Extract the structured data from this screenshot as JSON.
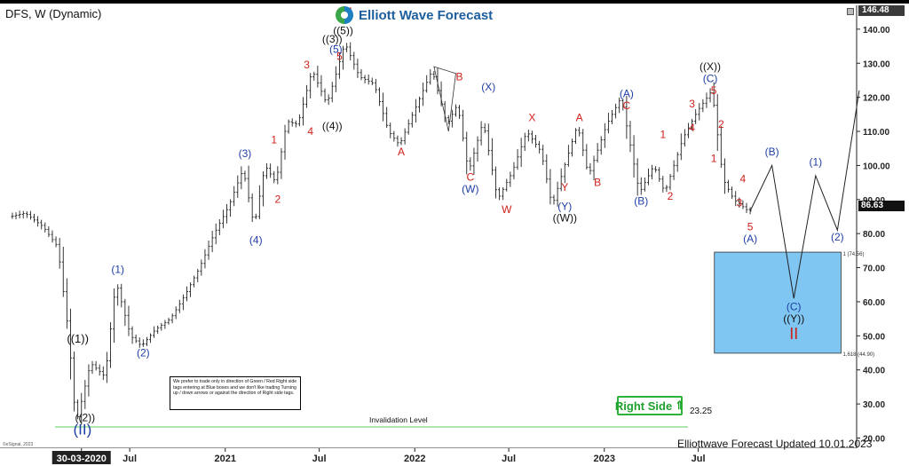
{
  "header": {
    "symbol": "DFS, W (Dynamic)",
    "brand_name": "Elliott Wave Forecast",
    "top_price": "146.48",
    "last_price": "86.63"
  },
  "colors": {
    "wave_blue": "#1f3fa6",
    "wave_red": "#d0201a",
    "wave_black": "#111111",
    "target_box": "#7fc6f2",
    "invalidation_line": "#5bcf5b",
    "right_side_green": "#1fa12d"
  },
  "notes": {
    "box_text": "We prefer to trade only in direction of Green / Red Right side tags entering at Blue boxes and we don't like trading Turning up / down arrows or against the direction of Right side tags.",
    "right_side_label": "Right Side",
    "right_side_arrow": "⇑",
    "updated": "Elliottwave Forecast Updated 10.01.2023",
    "invalidation_label": "Invalidation Level",
    "invalidation_price": "23.25",
    "watermark": "©eSignal, 2023"
  },
  "chart_data": {
    "type": "ohlc",
    "ylim": [
      17,
      147
    ],
    "yticks": [
      140,
      130,
      120,
      110,
      100,
      90,
      80,
      70,
      60,
      50,
      40,
      30,
      20
    ],
    "ytick_labels": [
      "140.00",
      "130.00",
      "120.00",
      "110.00",
      "100.00",
      "90.00",
      "80.00",
      "70.00",
      "60.00",
      "50.00",
      "40.00",
      "30.00",
      "20.00"
    ],
    "x_start": "2019-11",
    "x_end": "2024-05",
    "xticks": [
      {
        "label": "30-03-2020",
        "date": "2020-03-30"
      },
      {
        "label": "Jul",
        "date": "2020-07-01"
      },
      {
        "label": "2021",
        "date": "2021-01-01"
      },
      {
        "label": "Jul",
        "date": "2021-07-01"
      },
      {
        "label": "2022",
        "date": "2022-01-01"
      },
      {
        "label": "Jul",
        "date": "2022-07-01"
      },
      {
        "label": "2023",
        "date": "2023-01-01"
      },
      {
        "label": "Jul",
        "date": "2023-07-01"
      }
    ],
    "price_path": [
      [
        "2019-11-18",
        85
      ],
      [
        "2019-12-16",
        86
      ],
      [
        "2020-01-20",
        82
      ],
      [
        "2020-02-17",
        76
      ],
      [
        "2020-03-09",
        50
      ],
      [
        "2020-03-23",
        24
      ],
      [
        "2020-04-20",
        42
      ],
      [
        "2020-05-18",
        38
      ],
      [
        "2020-06-08",
        66
      ],
      [
        "2020-07-06",
        50
      ],
      [
        "2020-07-27",
        47
      ],
      [
        "2020-08-24",
        52
      ],
      [
        "2020-09-21",
        55
      ],
      [
        "2020-10-19",
        62
      ],
      [
        "2020-11-16",
        70
      ],
      [
        "2020-12-14",
        80
      ],
      [
        "2021-01-11",
        88
      ],
      [
        "2021-02-08",
        99
      ],
      [
        "2021-03-01",
        82
      ],
      [
        "2021-03-22",
        100
      ],
      [
        "2021-04-12",
        95
      ],
      [
        "2021-05-03",
        113
      ],
      [
        "2021-05-24",
        112
      ],
      [
        "2021-06-07",
        120
      ],
      [
        "2021-06-21",
        128
      ],
      [
        "2021-07-19",
        118
      ],
      [
        "2021-08-02",
        125
      ],
      [
        "2021-08-23",
        136
      ],
      [
        "2021-09-20",
        126
      ],
      [
        "2021-10-18",
        124
      ],
      [
        "2021-11-15",
        110
      ],
      [
        "2021-12-06",
        106
      ],
      [
        "2022-01-03",
        116
      ],
      [
        "2022-02-07",
        128
      ],
      [
        "2022-03-07",
        112
      ],
      [
        "2022-03-28",
        118
      ],
      [
        "2022-04-18",
        98
      ],
      [
        "2022-05-16",
        113
      ],
      [
        "2022-06-13",
        90
      ],
      [
        "2022-07-11",
        98
      ],
      [
        "2022-08-08",
        110
      ],
      [
        "2022-09-05",
        104
      ],
      [
        "2022-09-26",
        88
      ],
      [
        "2022-10-24",
        102
      ],
      [
        "2022-11-14",
        112
      ],
      [
        "2022-12-05",
        97
      ],
      [
        "2023-01-09",
        112
      ],
      [
        "2023-02-06",
        120
      ],
      [
        "2023-03-13",
        92
      ],
      [
        "2023-04-10",
        100
      ],
      [
        "2023-05-01",
        92
      ],
      [
        "2023-06-05",
        108
      ],
      [
        "2023-07-03",
        116
      ],
      [
        "2023-07-31",
        122
      ],
      [
        "2023-08-21",
        96
      ],
      [
        "2023-09-11",
        90
      ],
      [
        "2023-10-09",
        86.63
      ]
    ],
    "projection_path": [
      [
        "2023-10-09",
        86.63
      ],
      [
        "2023-11-20",
        100
      ],
      [
        "2024-01-01",
        61
      ],
      [
        "2024-02-12",
        97
      ],
      [
        "2024-03-25",
        81
      ],
      [
        "2024-05-06",
        122
      ]
    ],
    "triangle": [
      [
        "2022-02-07",
        129
      ],
      [
        "2022-03-21",
        127
      ],
      [
        "2022-03-07",
        110
      ]
    ],
    "target_box": {
      "x0": "2023-08-01",
      "x1": "2024-04-01",
      "y_top": 74.56,
      "y_bottom": 44.9,
      "top_label": "1 (74.56)",
      "bottom_label": "1.618 (44.90)"
    },
    "invalidation_level": 23.25,
    "wave_labels": [
      {
        "text": "((1))",
        "x": "2020-03-23",
        "y": 48,
        "color": "black",
        "size": 13
      },
      {
        "text": "((2))",
        "x": "2020-04-06",
        "y": 25,
        "color": "black",
        "size": 12
      },
      {
        "text": "(II)",
        "x": "2020-04-01",
        "y": 21,
        "color": "blue",
        "size": 17
      },
      {
        "text": "(1)",
        "x": "2020-06-08",
        "y": 68.5,
        "color": "blue",
        "size": 12
      },
      {
        "text": "(2)",
        "x": "2020-07-27",
        "y": 44,
        "color": "blue",
        "size": 12
      },
      {
        "text": "(3)",
        "x": "2021-02-08",
        "y": 102.5,
        "color": "blue",
        "size": 12
      },
      {
        "text": "(4)",
        "x": "2021-03-01",
        "y": 77,
        "color": "blue",
        "size": 12
      },
      {
        "text": "1",
        "x": "2021-04-05",
        "y": 106.5,
        "color": "red",
        "size": 12
      },
      {
        "text": "2",
        "x": "2021-04-12",
        "y": 89,
        "color": "red",
        "size": 12
      },
      {
        "text": "3",
        "x": "2021-06-07",
        "y": 128.5,
        "color": "red",
        "size": 12
      },
      {
        "text": "4",
        "x": "2021-06-14",
        "y": 109,
        "color": "red",
        "size": 12
      },
      {
        "text": "5",
        "x": "2021-08-09",
        "y": 131,
        "color": "red",
        "size": 12
      },
      {
        "text": "(5)",
        "x": "2021-08-02",
        "y": 133,
        "color": "blue",
        "size": 12
      },
      {
        "text": "((3))",
        "x": "2021-07-26",
        "y": 136,
        "color": "black",
        "size": 12
      },
      {
        "text": "((5))",
        "x": "2021-08-16",
        "y": 138.5,
        "color": "black",
        "size": 12
      },
      {
        "text": "((4))",
        "x": "2021-07-26",
        "y": 110.5,
        "color": "black",
        "size": 12
      },
      {
        "text": "I",
        "x": "2021-08-30",
        "y": 143,
        "color": "red",
        "size": 18
      },
      {
        "text": "A",
        "x": "2021-12-06",
        "y": 103,
        "color": "red",
        "size": 12
      },
      {
        "text": "B",
        "x": "2022-03-28",
        "y": 125,
        "color": "red",
        "size": 12
      },
      {
        "text": "C",
        "x": "2022-04-18",
        "y": 95.5,
        "color": "red",
        "size": 12
      },
      {
        "text": "(W)",
        "x": "2022-04-18",
        "y": 92,
        "color": "blue",
        "size": 12
      },
      {
        "text": "(X)",
        "x": "2022-05-23",
        "y": 122,
        "color": "blue",
        "size": 12
      },
      {
        "text": "W",
        "x": "2022-06-27",
        "y": 86,
        "color": "red",
        "size": 12
      },
      {
        "text": "X",
        "x": "2022-08-15",
        "y": 113,
        "color": "red",
        "size": 12
      },
      {
        "text": "A",
        "x": "2022-11-14",
        "y": 113,
        "color": "red",
        "size": 12
      },
      {
        "text": "Y",
        "x": "2022-10-17",
        "y": 92.5,
        "color": "red",
        "size": 12
      },
      {
        "text": "(Y)",
        "x": "2022-10-17",
        "y": 87,
        "color": "blue",
        "size": 12
      },
      {
        "text": "((W))",
        "x": "2022-10-17",
        "y": 83.5,
        "color": "black",
        "size": 12
      },
      {
        "text": "B",
        "x": "2022-12-19",
        "y": 94,
        "color": "red",
        "size": 12
      },
      {
        "text": "C",
        "x": "2023-02-13",
        "y": 116.5,
        "color": "red",
        "size": 12
      },
      {
        "text": "(A)",
        "x": "2023-02-13",
        "y": 120,
        "color": "blue",
        "size": 12
      },
      {
        "text": "(B)",
        "x": "2023-03-13",
        "y": 88.5,
        "color": "blue",
        "size": 12
      },
      {
        "text": "1",
        "x": "2023-04-24",
        "y": 108,
        "color": "red",
        "size": 12
      },
      {
        "text": "2",
        "x": "2023-05-08",
        "y": 90,
        "color": "red",
        "size": 12
      },
      {
        "text": "3",
        "x": "2023-06-19",
        "y": 117,
        "color": "red",
        "size": 12
      },
      {
        "text": "4",
        "x": "2023-06-19",
        "y": 110,
        "color": "red",
        "size": 12
      },
      {
        "text": "5",
        "x": "2023-07-31",
        "y": 121,
        "color": "red",
        "size": 12
      },
      {
        "text": "(C)",
        "x": "2023-07-24",
        "y": 124.5,
        "color": "blue",
        "size": 12
      },
      {
        "text": "((X))",
        "x": "2023-07-24",
        "y": 128,
        "color": "black",
        "size": 12
      },
      {
        "text": "1",
        "x": "2023-07-31",
        "y": 101,
        "color": "red",
        "size": 12
      },
      {
        "text": "2",
        "x": "2023-08-14",
        "y": 111,
        "color": "red",
        "size": 12
      },
      {
        "text": "3",
        "x": "2023-09-18",
        "y": 88,
        "color": "red",
        "size": 12
      },
      {
        "text": "4",
        "x": "2023-09-25",
        "y": 95,
        "color": "red",
        "size": 12
      },
      {
        "text": "5",
        "x": "2023-10-09",
        "y": 81,
        "color": "red",
        "size": 12
      },
      {
        "text": "(A)",
        "x": "2023-10-09",
        "y": 77.5,
        "color": "blue",
        "size": 12
      },
      {
        "text": "(B)",
        "x": "2023-11-20",
        "y": 103,
        "color": "blue",
        "size": 12
      },
      {
        "text": "(C)",
        "x": "2024-01-01",
        "y": 57.5,
        "color": "blue",
        "size": 12
      },
      {
        "text": "((Y))",
        "x": "2024-01-01",
        "y": 54,
        "color": "black",
        "size": 12
      },
      {
        "text": "II",
        "x": "2024-01-01",
        "y": 49,
        "color": "red",
        "size": 18
      },
      {
        "text": "(1)",
        "x": "2024-02-12",
        "y": 100,
        "color": "blue",
        "size": 12
      },
      {
        "text": "(2)",
        "x": "2024-03-25",
        "y": 78,
        "color": "blue",
        "size": 12
      }
    ]
  }
}
